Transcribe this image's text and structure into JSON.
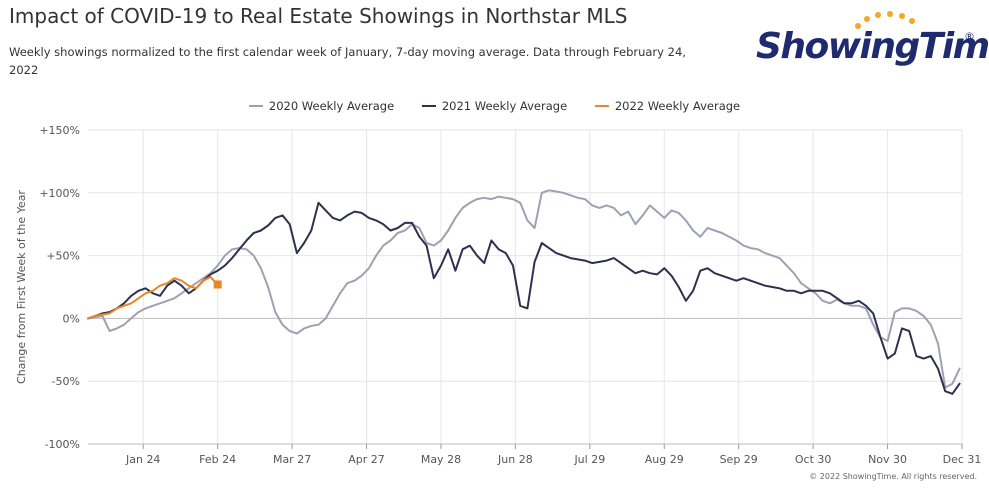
{
  "title": "Impact of COVID-19 to Real Estate Showings in Northstar MLS",
  "subtitle": "Weekly showings normalized to the first calendar week of January, 7-day moving average. Data through February 24, 2022",
  "logo": {
    "text": "ShowingTime",
    "reg": "®",
    "accent_color": "#f5a623",
    "text_color": "#1f2b6e"
  },
  "credit": "© 2022 ShowingTime. All rights reserved.",
  "chart_data": {
    "type": "line",
    "ylabel": "Change from First Week of the Year",
    "ylim": [
      -100,
      150
    ],
    "yticks": [
      150,
      100,
      50,
      0,
      -50,
      -100
    ],
    "ytick_labels": [
      "+150%",
      "+100%",
      "+50%",
      "0%",
      "-50%",
      "-100%"
    ],
    "xlim": [
      1,
      365
    ],
    "xticks": [
      24,
      55,
      86,
      117,
      148,
      179,
      210,
      241,
      272,
      303,
      334,
      365
    ],
    "xtick_labels": [
      "Jan 24",
      "Feb 24",
      "Mar 27",
      "Apr 27",
      "May 28",
      "Jun 28",
      "Jul 29",
      "Aug 29",
      "Sep 29",
      "Oct 30",
      "Nov 30",
      "Dec 31"
    ],
    "grid": true,
    "legend_position": "top-center",
    "series": [
      {
        "name": "2020 Weekly Average",
        "color": "#a0a0b4",
        "x": [
          1,
          4,
          7,
          10,
          13,
          16,
          19,
          22,
          25,
          28,
          31,
          34,
          37,
          40,
          43,
          46,
          49,
          52,
          55,
          58,
          61,
          64,
          67,
          70,
          73,
          76,
          79,
          82,
          85,
          88,
          91,
          94,
          97,
          100,
          103,
          106,
          109,
          112,
          115,
          118,
          121,
          124,
          127,
          130,
          133,
          136,
          139,
          142,
          145,
          148,
          151,
          154,
          157,
          160,
          163,
          166,
          169,
          172,
          175,
          178,
          181,
          184,
          187,
          190,
          193,
          196,
          199,
          202,
          205,
          208,
          211,
          214,
          217,
          220,
          223,
          226,
          229,
          232,
          235,
          238,
          241,
          244,
          247,
          250,
          253,
          256,
          259,
          262,
          265,
          268,
          271,
          274,
          277,
          280,
          283,
          286,
          289,
          292,
          295,
          298,
          301,
          304,
          307,
          310,
          313,
          316,
          319,
          322,
          325,
          328,
          331,
          334,
          337,
          340,
          343,
          346,
          349,
          352,
          355,
          358,
          361,
          364
        ],
        "y": [
          0,
          1,
          2,
          -10,
          -8,
          -5,
          0,
          5,
          8,
          10,
          12,
          14,
          16,
          20,
          24,
          28,
          32,
          36,
          42,
          50,
          55,
          56,
          55,
          50,
          40,
          25,
          5,
          -5,
          -10,
          -12,
          -8,
          -6,
          -5,
          0,
          10,
          20,
          28,
          30,
          34,
          40,
          50,
          58,
          62,
          68,
          70,
          75,
          72,
          60,
          58,
          62,
          70,
          80,
          88,
          92,
          95,
          96,
          95,
          97,
          96,
          95,
          92,
          78,
          72,
          100,
          102,
          101,
          100,
          98,
          96,
          95,
          90,
          88,
          90,
          88,
          82,
          85,
          75,
          82,
          90,
          85,
          80,
          86,
          84,
          78,
          70,
          65,
          72,
          70,
          68,
          65,
          62,
          58,
          56,
          55,
          52,
          50,
          48,
          42,
          36,
          28,
          24,
          20,
          14,
          12,
          15,
          12,
          10,
          10,
          8,
          -5,
          -15,
          -18,
          5,
          8,
          8,
          6,
          2,
          -5,
          -20,
          -55,
          -52,
          -40
        ]
      },
      {
        "name": "2021 Weekly Average",
        "color": "#2e3050",
        "x": [
          1,
          4,
          7,
          10,
          13,
          16,
          19,
          22,
          25,
          28,
          31,
          34,
          37,
          40,
          43,
          46,
          49,
          52,
          55,
          58,
          61,
          64,
          67,
          70,
          73,
          76,
          79,
          82,
          85,
          88,
          91,
          94,
          97,
          100,
          103,
          106,
          109,
          112,
          115,
          118,
          121,
          124,
          127,
          130,
          133,
          136,
          139,
          142,
          145,
          148,
          151,
          154,
          157,
          160,
          163,
          166,
          169,
          172,
          175,
          178,
          181,
          184,
          187,
          190,
          193,
          196,
          199,
          202,
          205,
          208,
          211,
          214,
          217,
          220,
          223,
          226,
          229,
          232,
          235,
          238,
          241,
          244,
          247,
          250,
          253,
          256,
          259,
          262,
          265,
          268,
          271,
          274,
          277,
          280,
          283,
          286,
          289,
          292,
          295,
          298,
          301,
          304,
          307,
          310,
          313,
          316,
          319,
          322,
          325,
          328,
          331,
          334,
          337,
          340,
          343,
          346,
          349,
          352,
          355,
          358,
          361,
          364
        ],
        "y": [
          0,
          2,
          4,
          5,
          8,
          12,
          18,
          22,
          24,
          20,
          18,
          26,
          30,
          26,
          20,
          24,
          30,
          35,
          38,
          42,
          48,
          55,
          62,
          68,
          70,
          74,
          80,
          82,
          75,
          52,
          60,
          70,
          92,
          86,
          80,
          78,
          82,
          85,
          84,
          80,
          78,
          75,
          70,
          72,
          76,
          76,
          65,
          58,
          32,
          42,
          55,
          38,
          55,
          58,
          50,
          44,
          62,
          55,
          52,
          42,
          10,
          8,
          45,
          60,
          56,
          52,
          50,
          48,
          47,
          46,
          44,
          45,
          46,
          48,
          44,
          40,
          36,
          38,
          36,
          35,
          40,
          34,
          25,
          14,
          22,
          38,
          40,
          36,
          34,
          32,
          30,
          32,
          30,
          28,
          26,
          25,
          24,
          22,
          22,
          20,
          22,
          22,
          22,
          20,
          16,
          12,
          12,
          14,
          10,
          4,
          -15,
          -32,
          -28,
          -8,
          -10,
          -30,
          -32,
          -30,
          -40,
          -58,
          -60,
          -52
        ]
      },
      {
        "name": "2022 Weekly Average",
        "color": "#e8862a",
        "x": [
          1,
          4,
          7,
          10,
          13,
          16,
          19,
          22,
          25,
          28,
          31,
          34,
          37,
          40,
          43,
          46,
          49,
          52,
          55
        ],
        "y": [
          0,
          2,
          3,
          4,
          8,
          10,
          12,
          16,
          20,
          22,
          26,
          28,
          32,
          30,
          26,
          24,
          30,
          33,
          27
        ]
      }
    ]
  }
}
